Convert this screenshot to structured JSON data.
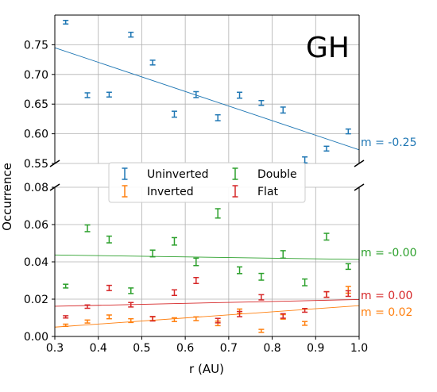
{
  "chart_data": {
    "type": "scatter",
    "title": "GH",
    "xlabel": "r (AU)",
    "ylabel": "Occurrence",
    "xlim": [
      0.3,
      1.0
    ],
    "broken_axis": true,
    "upper_ylim": [
      0.55,
      0.8
    ],
    "lower_ylim": [
      0.0,
      0.08
    ],
    "x_ticks": [
      "0.3",
      "0.4",
      "0.5",
      "0.6",
      "0.7",
      "0.8",
      "0.9",
      "1.0"
    ],
    "upper_y_ticks": [
      "0.55",
      "0.60",
      "0.65",
      "0.70",
      "0.75"
    ],
    "lower_y_ticks": [
      "0.00",
      "0.02",
      "0.04",
      "0.06",
      "0.08"
    ],
    "grid": true,
    "legend_position": "center",
    "series": [
      {
        "name": "Uninverted",
        "color": "#1f77b4",
        "panel": "upper",
        "x": [
          0.325,
          0.375,
          0.425,
          0.475,
          0.525,
          0.575,
          0.625,
          0.675,
          0.725,
          0.775,
          0.825,
          0.875,
          0.925,
          0.975
        ],
        "y": [
          0.788,
          0.665,
          0.666,
          0.767,
          0.72,
          0.633,
          0.666,
          0.627,
          0.665,
          0.652,
          0.64,
          0.556,
          0.575,
          0.604
        ],
        "err": [
          0.003,
          0.004,
          0.004,
          0.004,
          0.004,
          0.005,
          0.005,
          0.005,
          0.005,
          0.004,
          0.005,
          0.005,
          0.004,
          0.004
        ],
        "fit": {
          "y_at_0.3": 0.745,
          "y_at_1.0": 0.573
        },
        "slope_label": "m = -0.25"
      },
      {
        "name": "Inverted",
        "color": "#ff7f0e",
        "panel": "lower",
        "x": [
          0.325,
          0.375,
          0.425,
          0.475,
          0.525,
          0.575,
          0.625,
          0.675,
          0.725,
          0.775,
          0.825,
          0.875,
          0.925,
          0.975
        ],
        "y": [
          0.006,
          0.008,
          0.0105,
          0.0085,
          0.0095,
          0.009,
          0.0095,
          0.007,
          0.0135,
          0.003,
          0.0105,
          0.007,
          0.0225,
          0.025
        ],
        "err": [
          0.0006,
          0.0008,
          0.001,
          0.001,
          0.001,
          0.001,
          0.001,
          0.0012,
          0.0012,
          0.0008,
          0.0012,
          0.001,
          0.0015,
          0.0018
        ],
        "fit": {
          "y_at_0.3": 0.005,
          "y_at_1.0": 0.0165
        },
        "slope_label": "m = 0.02"
      },
      {
        "name": "Double",
        "color": "#2ca02c",
        "panel": "lower",
        "x": [
          0.325,
          0.375,
          0.425,
          0.475,
          0.525,
          0.575,
          0.625,
          0.675,
          0.725,
          0.775,
          0.825,
          0.875,
          0.925,
          0.975
        ],
        "y": [
          0.027,
          0.058,
          0.052,
          0.0245,
          0.0445,
          0.051,
          0.04,
          0.066,
          0.0355,
          0.032,
          0.044,
          0.029,
          0.0535,
          0.0375
        ],
        "err": [
          0.001,
          0.0018,
          0.0018,
          0.0015,
          0.0018,
          0.002,
          0.002,
          0.0025,
          0.0018,
          0.0018,
          0.002,
          0.0018,
          0.0018,
          0.0015
        ],
        "fit": {
          "y_at_0.3": 0.0437,
          "y_at_1.0": 0.0413
        },
        "slope_label": "m = -0.00"
      },
      {
        "name": "Flat",
        "color": "#d62728",
        "panel": "lower",
        "x": [
          0.325,
          0.375,
          0.425,
          0.475,
          0.525,
          0.575,
          0.625,
          0.675,
          0.725,
          0.775,
          0.825,
          0.875,
          0.925,
          0.975
        ],
        "y": [
          0.0105,
          0.016,
          0.026,
          0.017,
          0.0095,
          0.0235,
          0.03,
          0.0085,
          0.012,
          0.021,
          0.011,
          0.014,
          0.0225,
          0.023
        ],
        "err": [
          0.0006,
          0.0009,
          0.0014,
          0.0012,
          0.0012,
          0.0015,
          0.0016,
          0.0012,
          0.0014,
          0.0014,
          0.0012,
          0.001,
          0.0015,
          0.0015
        ],
        "fit": {
          "y_at_0.3": 0.0162,
          "y_at_1.0": 0.0198
        },
        "slope_label": "m = 0.00"
      }
    ]
  }
}
